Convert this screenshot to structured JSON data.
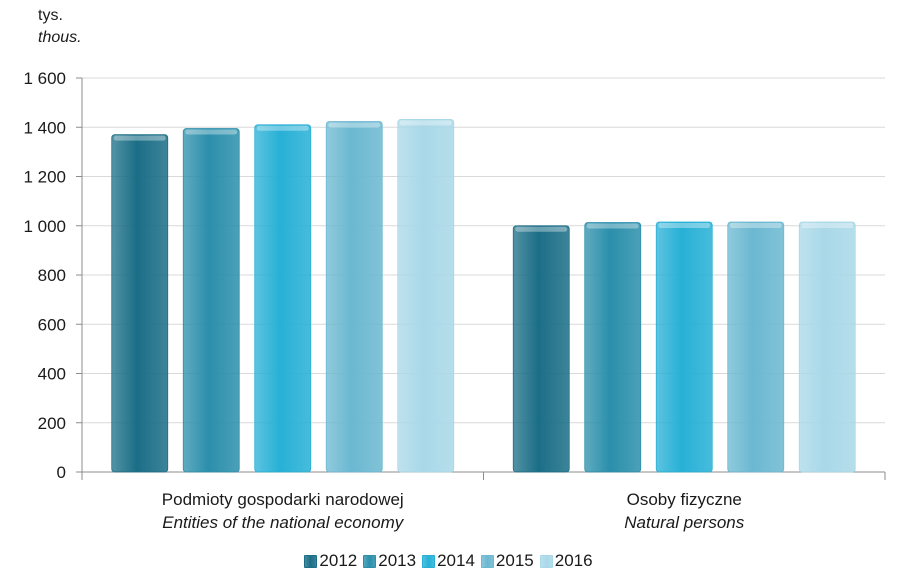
{
  "chart_data": {
    "type": "bar",
    "unit_label": "tys.",
    "unit_label_en": "thous.",
    "categories": [
      {
        "label": "Podmioty gospodarki narodowej",
        "label_en": "Entities of the national economy"
      },
      {
        "label": "Osoby fizyczne",
        "label_en": "Natural persons"
      }
    ],
    "series": [
      {
        "name": "2012",
        "color": "#1b6e87",
        "values": [
          1370,
          1000
        ]
      },
      {
        "name": "2013",
        "color": "#2b8fab",
        "values": [
          1395,
          1013
        ]
      },
      {
        "name": "2014",
        "color": "#27b0d6",
        "values": [
          1410,
          1015
        ]
      },
      {
        "name": "2015",
        "color": "#6bb8d1",
        "values": [
          1423,
          1015
        ]
      },
      {
        "name": "2016",
        "color": "#a9d8e8",
        "values": [
          1432,
          1015
        ]
      }
    ],
    "ylim": [
      0,
      1600
    ],
    "yticks": [
      0,
      200,
      400,
      600,
      800,
      1000,
      1200,
      1400,
      1600
    ],
    "ytick_labels": [
      "0",
      "200",
      "400",
      "600",
      "800",
      "1 000",
      "1 200",
      "1 400",
      "1 600"
    ],
    "grid": true,
    "legend_position": "bottom"
  }
}
